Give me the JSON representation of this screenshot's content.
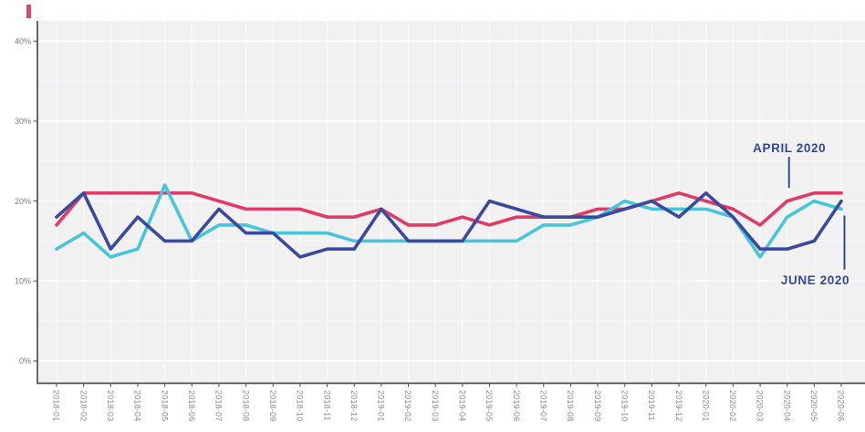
{
  "page": {
    "background_color": "#ffffff"
  },
  "logo_fragment": {
    "color": "#e8406b"
  },
  "chart_data": {
    "type": "line",
    "x_labels": [
      "2018-01",
      "2018-02",
      "2018-03",
      "2018-04",
      "2018-05",
      "2018-06",
      "2018-07",
      "2018-08",
      "2018-09",
      "2018-10",
      "2018-11",
      "2018-12",
      "2019-01",
      "2019-02",
      "2019-03",
      "2019-04",
      "2019-05",
      "2019-06",
      "2019-07",
      "2019-08",
      "2019-09",
      "2019-10",
      "2019-11",
      "2019-12",
      "2020-01",
      "2020-02",
      "2020-03",
      "2020-04",
      "2020-05",
      "2020-06"
    ],
    "yticks": [
      {
        "label": "0%",
        "value": 0
      },
      {
        "label": "10%",
        "value": 10
      },
      {
        "label": "20%",
        "value": 20
      },
      {
        "label": "30%",
        "value": 30
      },
      {
        "label": "40%",
        "value": 40
      }
    ],
    "ylim": [
      0,
      42.5
    ],
    "grid": true,
    "legend": "none",
    "plot_background": "#f1f1f2",
    "gridline_color": "#ffffff",
    "axis_color": "#4d4d4d",
    "series": [
      {
        "name": "crimson-line",
        "color": "#e03a65",
        "values": [
          17,
          21,
          21,
          21,
          21,
          21,
          20,
          19,
          19,
          19,
          18,
          18,
          19,
          17,
          17,
          18,
          17,
          18,
          18,
          18,
          19,
          19,
          20,
          21,
          20,
          19,
          17,
          20,
          21,
          21
        ]
      },
      {
        "name": "cyan-line",
        "color": "#47c6d9",
        "values": [
          14,
          16,
          13,
          14,
          22,
          15,
          17,
          17,
          16,
          16,
          16,
          15,
          15,
          15,
          15,
          15,
          15,
          15,
          17,
          17,
          18,
          20,
          19,
          19,
          19,
          18,
          13,
          18,
          20,
          19
        ]
      },
      {
        "name": "navy-line",
        "color": "#3a4a9e",
        "values": [
          18,
          21,
          14,
          18,
          15,
          15,
          19,
          16,
          16,
          13,
          14,
          14,
          19,
          15,
          15,
          15,
          20,
          19,
          18,
          18,
          18,
          19,
          20,
          18,
          21,
          18,
          14,
          14,
          15,
          20
        ]
      }
    ],
    "annotation_color": "#2e4b93",
    "annotations": [
      {
        "text": "APRIL 2020",
        "month": "2020-04",
        "target_series": "crimson-line",
        "side": "above"
      },
      {
        "text": "JUNE 2020",
        "month": "2020-06",
        "target_series": "cyan-line",
        "side": "below"
      }
    ]
  }
}
